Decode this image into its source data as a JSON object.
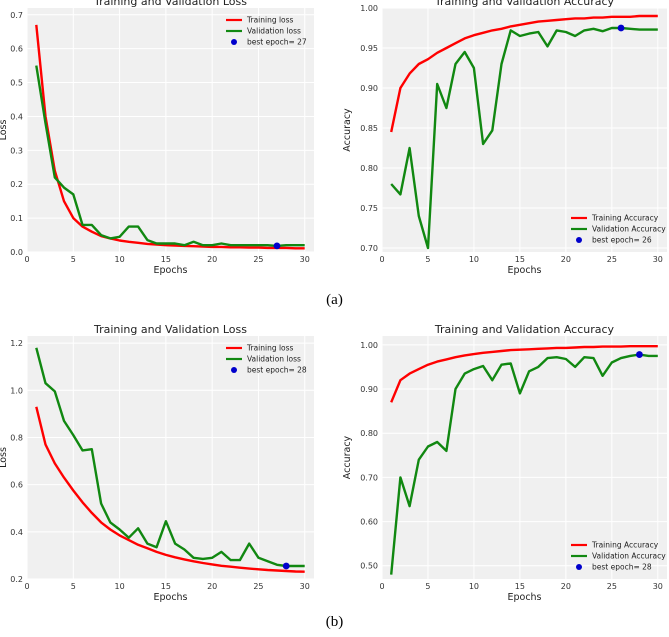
{
  "colors": {
    "train": "#ff0000",
    "val": "#118811",
    "best": "#0000cc",
    "plot_bg": "#f0f0f0"
  },
  "captions": {
    "a": "(a)",
    "b": "(b)"
  },
  "chart_data": [
    {
      "id": "a-loss",
      "type": "line",
      "title": "Training and Validation Loss",
      "xlabel": "Epochs",
      "ylabel": "Loss",
      "xlim": [
        0,
        31
      ],
      "ylim": [
        0,
        0.72
      ],
      "xticks": [
        0,
        5,
        10,
        15,
        20,
        25,
        30
      ],
      "yticks": [
        0.0,
        0.1,
        0.2,
        0.3,
        0.4,
        0.5,
        0.6,
        0.7
      ],
      "legend_position": "top-right",
      "series": [
        {
          "name": "Training loss",
          "color": "train",
          "x": [
            1,
            2,
            3,
            4,
            5,
            6,
            7,
            8,
            9,
            10,
            11,
            12,
            13,
            14,
            15,
            16,
            17,
            18,
            19,
            20,
            21,
            22,
            23,
            24,
            25,
            26,
            27,
            28,
            29,
            30
          ],
          "values": [
            0.67,
            0.4,
            0.24,
            0.15,
            0.1,
            0.075,
            0.06,
            0.047,
            0.04,
            0.034,
            0.03,
            0.027,
            0.024,
            0.022,
            0.02,
            0.019,
            0.018,
            0.017,
            0.016,
            0.015,
            0.015,
            0.014,
            0.014,
            0.013,
            0.013,
            0.012,
            0.012,
            0.012,
            0.011,
            0.011
          ]
        },
        {
          "name": "Validation loss",
          "color": "val",
          "x": [
            1,
            2,
            3,
            4,
            5,
            6,
            7,
            8,
            9,
            10,
            11,
            12,
            13,
            14,
            15,
            16,
            17,
            18,
            19,
            20,
            21,
            22,
            23,
            24,
            25,
            26,
            27,
            28,
            29,
            30
          ],
          "values": [
            0.55,
            0.38,
            0.22,
            0.19,
            0.17,
            0.08,
            0.08,
            0.05,
            0.04,
            0.045,
            0.075,
            0.075,
            0.035,
            0.025,
            0.025,
            0.025,
            0.02,
            0.03,
            0.02,
            0.02,
            0.025,
            0.02,
            0.02,
            0.02,
            0.02,
            0.02,
            0.018,
            0.02,
            0.02,
            0.02
          ]
        }
      ],
      "best": {
        "label": "best epoch= 27",
        "x": 27,
        "y": 0.018
      }
    },
    {
      "id": "a-acc",
      "type": "line",
      "title": "Training and Validation Accuracy",
      "xlabel": "Epochs",
      "ylabel": "Accuracy",
      "xlim": [
        0,
        31
      ],
      "ylim": [
        0.695,
        1.0
      ],
      "xticks": [
        0,
        5,
        10,
        15,
        20,
        25,
        30
      ],
      "yticks": [
        0.7,
        0.75,
        0.8,
        0.85,
        0.9,
        0.95,
        1.0
      ],
      "legend_position": "bottom-right",
      "series": [
        {
          "name": "Training Accuracy",
          "color": "train",
          "x": [
            1,
            2,
            3,
            4,
            5,
            6,
            7,
            8,
            9,
            10,
            11,
            12,
            13,
            14,
            15,
            16,
            17,
            18,
            19,
            20,
            21,
            22,
            23,
            24,
            25,
            26,
            27,
            28,
            29,
            30
          ],
          "values": [
            0.845,
            0.9,
            0.918,
            0.93,
            0.936,
            0.944,
            0.95,
            0.956,
            0.962,
            0.966,
            0.969,
            0.972,
            0.974,
            0.977,
            0.979,
            0.981,
            0.983,
            0.984,
            0.985,
            0.986,
            0.987,
            0.987,
            0.988,
            0.988,
            0.989,
            0.989,
            0.989,
            0.99,
            0.99,
            0.99
          ]
        },
        {
          "name": "Validation Accuracy",
          "color": "val",
          "x": [
            1,
            2,
            3,
            4,
            5,
            6,
            7,
            8,
            9,
            10,
            11,
            12,
            13,
            14,
            15,
            16,
            17,
            18,
            19,
            20,
            21,
            22,
            23,
            24,
            25,
            26,
            27,
            28,
            29,
            30
          ],
          "values": [
            0.78,
            0.767,
            0.825,
            0.74,
            0.7,
            0.905,
            0.875,
            0.93,
            0.945,
            0.925,
            0.83,
            0.847,
            0.93,
            0.972,
            0.965,
            0.968,
            0.97,
            0.952,
            0.972,
            0.97,
            0.965,
            0.972,
            0.974,
            0.971,
            0.975,
            0.975,
            0.974,
            0.973,
            0.973,
            0.973
          ]
        }
      ],
      "best": {
        "label": "best epoch= 26",
        "x": 26,
        "y": 0.975
      }
    },
    {
      "id": "b-loss",
      "type": "line",
      "title": "Training and Validation Loss",
      "xlabel": "Epochs",
      "ylabel": "Loss",
      "xlim": [
        0,
        31
      ],
      "ylim": [
        0.2,
        1.23
      ],
      "xticks": [
        0,
        5,
        10,
        15,
        20,
        25,
        30
      ],
      "yticks": [
        0.2,
        0.4,
        0.6,
        0.8,
        1.0,
        1.2
      ],
      "legend_position": "top-right",
      "series": [
        {
          "name": "Training loss",
          "color": "train",
          "x": [
            1,
            2,
            3,
            4,
            5,
            6,
            7,
            8,
            9,
            10,
            11,
            12,
            13,
            14,
            15,
            16,
            17,
            18,
            19,
            20,
            21,
            22,
            23,
            24,
            25,
            26,
            27,
            28,
            29,
            30
          ],
          "values": [
            0.93,
            0.77,
            0.69,
            0.63,
            0.575,
            0.525,
            0.48,
            0.44,
            0.41,
            0.385,
            0.365,
            0.345,
            0.33,
            0.315,
            0.302,
            0.292,
            0.283,
            0.275,
            0.268,
            0.262,
            0.256,
            0.252,
            0.248,
            0.244,
            0.241,
            0.238,
            0.236,
            0.234,
            0.232,
            0.231
          ]
        },
        {
          "name": "Validation loss",
          "color": "val",
          "x": [
            1,
            2,
            3,
            4,
            5,
            6,
            7,
            8,
            9,
            10,
            11,
            12,
            13,
            14,
            15,
            16,
            17,
            18,
            19,
            20,
            21,
            22,
            23,
            24,
            25,
            26,
            27,
            28,
            29,
            30
          ],
          "values": [
            1.18,
            1.03,
            0.995,
            0.87,
            0.81,
            0.745,
            0.75,
            0.52,
            0.44,
            0.41,
            0.375,
            0.415,
            0.35,
            0.335,
            0.445,
            0.35,
            0.325,
            0.29,
            0.285,
            0.29,
            0.315,
            0.28,
            0.28,
            0.35,
            0.29,
            0.275,
            0.26,
            0.255,
            0.255,
            0.255
          ]
        }
      ],
      "best": {
        "label": "best epoch= 28",
        "x": 28,
        "y": 0.255
      }
    },
    {
      "id": "b-acc",
      "type": "line",
      "title": "Training and Validation Accuracy",
      "xlabel": "Epochs",
      "ylabel": "Accuracy",
      "xlim": [
        0,
        31
      ],
      "ylim": [
        0.47,
        1.02
      ],
      "xticks": [
        0,
        5,
        10,
        15,
        20,
        25,
        30
      ],
      "yticks": [
        0.5,
        0.6,
        0.7,
        0.8,
        0.9,
        1.0
      ],
      "legend_position": "bottom-right",
      "series": [
        {
          "name": "Training Accuracy",
          "color": "train",
          "x": [
            1,
            2,
            3,
            4,
            5,
            6,
            7,
            8,
            9,
            10,
            11,
            12,
            13,
            14,
            15,
            16,
            17,
            18,
            19,
            20,
            21,
            22,
            23,
            24,
            25,
            26,
            27,
            28,
            29,
            30
          ],
          "values": [
            0.87,
            0.92,
            0.935,
            0.945,
            0.955,
            0.962,
            0.967,
            0.972,
            0.976,
            0.979,
            0.982,
            0.984,
            0.986,
            0.988,
            0.989,
            0.99,
            0.991,
            0.992,
            0.993,
            0.993,
            0.994,
            0.995,
            0.995,
            0.996,
            0.996,
            0.996,
            0.997,
            0.997,
            0.997,
            0.997
          ]
        },
        {
          "name": "Validation Accuracy",
          "color": "val",
          "x": [
            1,
            2,
            3,
            4,
            5,
            6,
            7,
            8,
            9,
            10,
            11,
            12,
            13,
            14,
            15,
            16,
            17,
            18,
            19,
            20,
            21,
            22,
            23,
            24,
            25,
            26,
            27,
            28,
            29,
            30
          ],
          "values": [
            0.48,
            0.7,
            0.635,
            0.74,
            0.77,
            0.78,
            0.76,
            0.9,
            0.935,
            0.945,
            0.952,
            0.92,
            0.955,
            0.958,
            0.89,
            0.94,
            0.95,
            0.97,
            0.972,
            0.968,
            0.95,
            0.972,
            0.97,
            0.93,
            0.96,
            0.97,
            0.975,
            0.978,
            0.975,
            0.975
          ]
        }
      ],
      "best": {
        "label": "best epoch= 28",
        "x": 28,
        "y": 0.978
      }
    }
  ]
}
